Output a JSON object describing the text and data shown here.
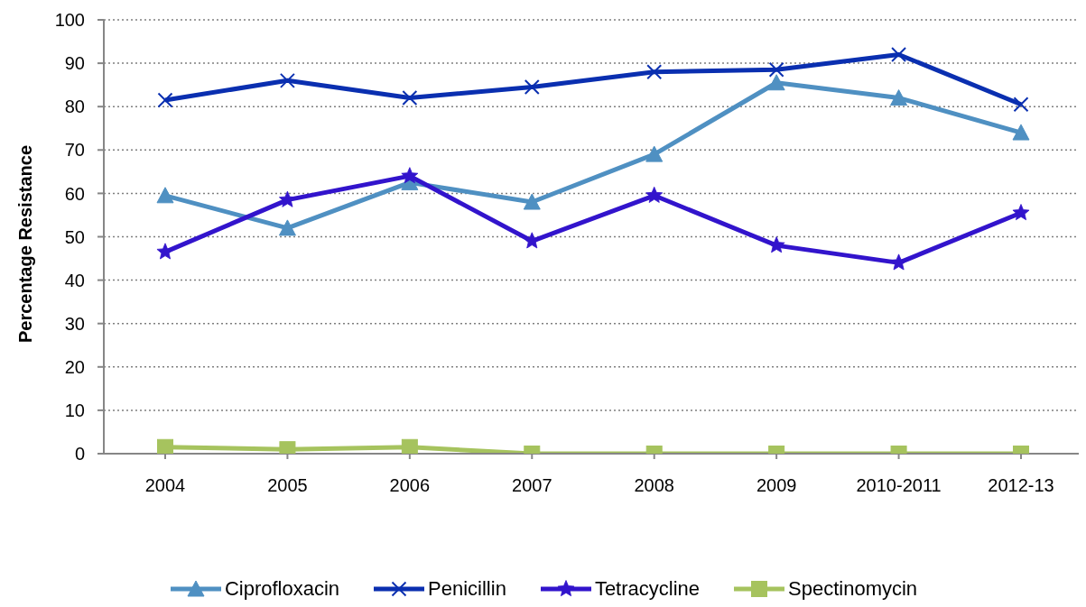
{
  "chart_data": {
    "type": "line",
    "ylabel": "Percentage Resistance",
    "categories": [
      "2004",
      "2005",
      "2006",
      "2007",
      "2008",
      "2009",
      "2010-2011",
      "2012-13"
    ],
    "series": [
      {
        "name": "Ciprofloxacin",
        "color": "#4f90c2",
        "marker": "triangle",
        "values": [
          59.5,
          52,
          62.5,
          58,
          69,
          85.5,
          82,
          74
        ]
      },
      {
        "name": "Penicillin",
        "color": "#0a2fb0",
        "marker": "cross",
        "values": [
          81.5,
          86,
          82,
          84.5,
          88,
          88.5,
          92,
          80.5
        ]
      },
      {
        "name": "Tetracycline",
        "color": "#3214cc",
        "marker": "star",
        "values": [
          46.5,
          58.5,
          64,
          49,
          59.5,
          48,
          44,
          55.5
        ]
      },
      {
        "name": "Spectinomycin",
        "color": "#a6c35e",
        "marker": "square",
        "values": [
          1.5,
          1,
          1.5,
          0,
          0,
          0,
          0,
          0
        ]
      }
    ],
    "ylim": [
      0,
      100
    ],
    "yticks": [
      0,
      10,
      20,
      30,
      40,
      50,
      60,
      70,
      80,
      90,
      100
    ],
    "grid": "y",
    "legend": "bottom",
    "line_style": "solid"
  }
}
